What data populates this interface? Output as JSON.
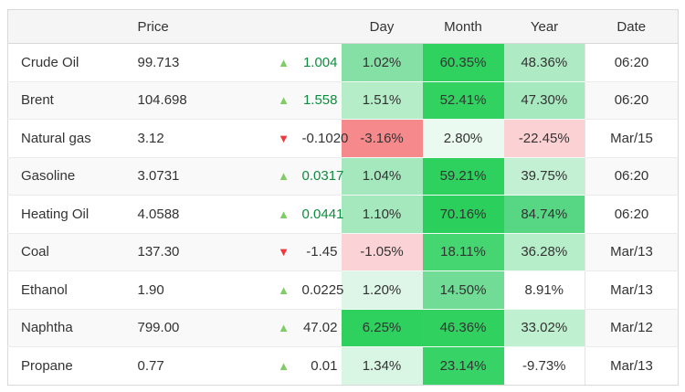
{
  "table": {
    "headers": {
      "name": "",
      "price": "Price",
      "arrow": "",
      "change": "",
      "day": "Day",
      "month": "Month",
      "year": "Year",
      "date": "Date"
    },
    "rows": [
      {
        "name": "Crude Oil",
        "price": "99.713",
        "direction": "up",
        "change": "1.004",
        "change_color": "#0d8c3f",
        "day": {
          "text": "1.02%",
          "bg": "#84e0a4"
        },
        "month": {
          "text": "60.35%",
          "bg": "#2fd15f"
        },
        "year": {
          "text": "48.36%",
          "bg": "#aeebc4"
        },
        "date": "06:20"
      },
      {
        "name": "Brent",
        "price": "104.698",
        "direction": "up",
        "change": "1.558",
        "change_color": "#0d8c3f",
        "day": {
          "text": "1.51%",
          "bg": "#b4edc8"
        },
        "month": {
          "text": "52.41%",
          "bg": "#32d261"
        },
        "year": {
          "text": "47.30%",
          "bg": "#a6e9be"
        },
        "date": "06:20"
      },
      {
        "name": "Natural gas",
        "price": "3.12",
        "direction": "down",
        "change": "-0.1020",
        "change_color": "#333333",
        "day": {
          "text": "-3.16%",
          "bg": "#f5898c"
        },
        "month": {
          "text": "2.80%",
          "bg": "#eafaf0"
        },
        "year": {
          "text": "-22.45%",
          "bg": "#fbd1d4"
        },
        "date": "Mar/15"
      },
      {
        "name": "Gasoline",
        "price": "3.0731",
        "direction": "up",
        "change": "0.0317",
        "change_color": "#0d8c3f",
        "day": {
          "text": "1.04%",
          "bg": "#a5e8be"
        },
        "month": {
          "text": "59.21%",
          "bg": "#2ed05e"
        },
        "year": {
          "text": "39.75%",
          "bg": "#c3f0d3"
        },
        "date": "06:20"
      },
      {
        "name": "Heating Oil",
        "price": "4.0588",
        "direction": "up",
        "change": "0.0441",
        "change_color": "#0d8c3f",
        "day": {
          "text": "1.10%",
          "bg": "#a5e8be"
        },
        "month": {
          "text": "70.16%",
          "bg": "#2bcf5b"
        },
        "year": {
          "text": "84.74%",
          "bg": "#57d783"
        },
        "date": "06:20"
      },
      {
        "name": "Coal",
        "price": "137.30",
        "direction": "down",
        "change": "-1.45",
        "change_color": "#333333",
        "day": {
          "text": "-1.05%",
          "bg": "#fbd3d6"
        },
        "month": {
          "text": "18.11%",
          "bg": "#46d671"
        },
        "year": {
          "text": "36.28%",
          "bg": "#b7eeca"
        },
        "date": "Mar/13"
      },
      {
        "name": "Ethanol",
        "price": "1.90",
        "direction": "up",
        "change": "0.0225",
        "change_color": "#333333",
        "day": {
          "text": "1.20%",
          "bg": "#ddf6e7"
        },
        "month": {
          "text": "14.50%",
          "bg": "#70dc96"
        },
        "year": {
          "text": "8.91%",
          "bg": ""
        },
        "date": "Mar/13"
      },
      {
        "name": "Naphtha",
        "price": "799.00",
        "direction": "up",
        "change": "47.02",
        "change_color": "#333333",
        "day": {
          "text": "6.25%",
          "bg": "#2ed05e"
        },
        "month": {
          "text": "46.36%",
          "bg": "#31d160"
        },
        "year": {
          "text": "33.02%",
          "bg": "#bff0d0"
        },
        "date": "Mar/12"
      },
      {
        "name": "Propane",
        "price": "0.77",
        "direction": "up",
        "change": "0.01",
        "change_color": "#333333",
        "day": {
          "text": "1.34%",
          "bg": "#d9f5e3"
        },
        "month": {
          "text": "23.14%",
          "bg": "#38d366"
        },
        "year": {
          "text": "-9.73%",
          "bg": ""
        },
        "date": "Mar/13"
      }
    ]
  },
  "icons": {
    "up_arrow": "▲",
    "down_arrow": "▼"
  },
  "colors": {
    "up_arrow": "#80cc67",
    "down_arrow": "#f0393d",
    "change_positive_text": "#0d8c3f",
    "default_text": "#333333",
    "header_bg": "#f5f5f5",
    "stripe_bg": "#f9f9f9",
    "heat_vivid_green": "#2ed05e",
    "heat_negative_red": "#f5898c"
  }
}
